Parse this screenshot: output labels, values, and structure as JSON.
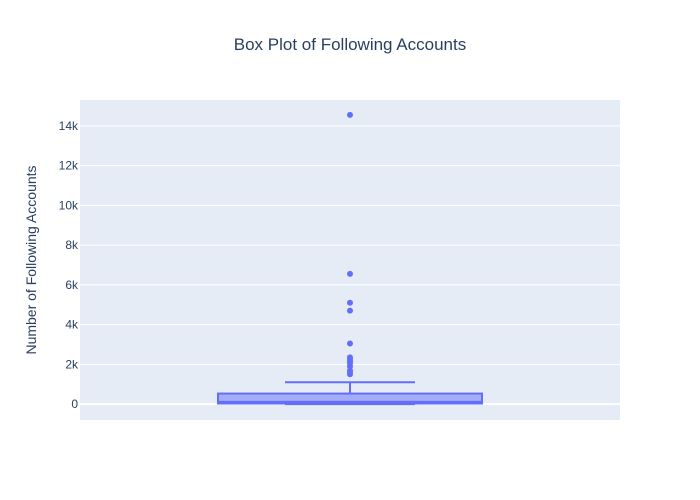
{
  "chart_data": {
    "type": "box",
    "title": "Box Plot of Following Accounts",
    "xlabel": "",
    "ylabel": "Number of Following Accounts",
    "ylim": [
      -800,
      15300
    ],
    "yticks": [
      0,
      2000,
      4000,
      6000,
      8000,
      10000,
      12000,
      14000
    ],
    "ytick_labels": [
      "0",
      "2k",
      "4k",
      "6k",
      "8k",
      "10k",
      "12k",
      "14k"
    ],
    "grid": true,
    "box": {
      "min": 0,
      "q1": 30,
      "median": 110,
      "q3": 530,
      "upper_fence": 1100,
      "outliers": [
        1500,
        1600,
        1700,
        1900,
        2050,
        2150,
        2250,
        2350,
        3050,
        4700,
        5100,
        6550,
        14550
      ]
    },
    "colors": {
      "box_line": "#636efa",
      "box_fill": "rgba(99,110,250,0.5)",
      "plot_bg": "#e5ecf6",
      "grid": "#ffffff",
      "text": "#2a3f5f"
    }
  }
}
